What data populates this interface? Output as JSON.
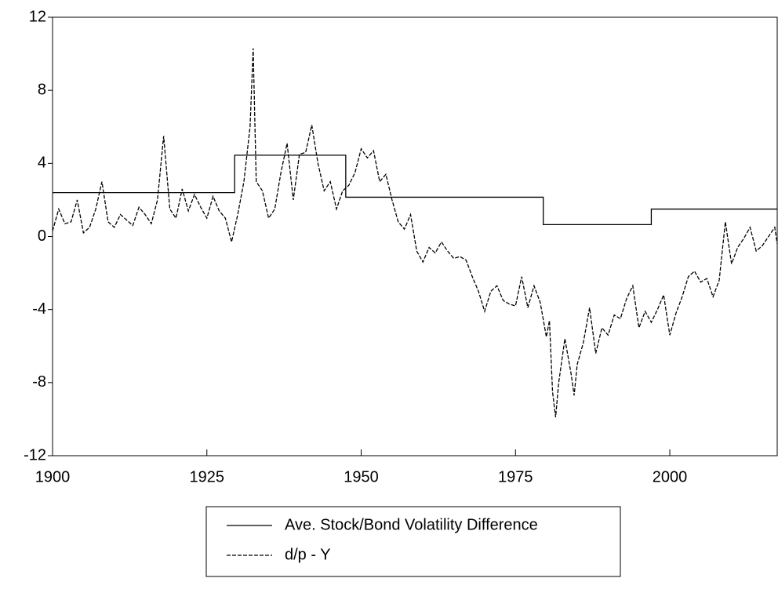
{
  "chart_data": {
    "type": "line",
    "xlim": [
      1900,
      2017.4
    ],
    "xticks": [
      1900,
      1925,
      1950,
      1975,
      2000
    ],
    "ylim": [
      -12,
      12
    ],
    "yticks": [
      -12,
      -8,
      -4,
      0,
      4,
      8,
      12
    ],
    "legend": "bottom",
    "series": [
      {
        "name": "Ave. Stock/Bond Volatility Difference",
        "color": "#000000",
        "dash": "solid",
        "x": [
          1900,
          1929.5,
          1929.5,
          1947.5,
          1947.5,
          1979.5,
          1979.5,
          1997,
          1997,
          2017.4
        ],
        "values": [
          2.4,
          2.4,
          4.45,
          4.45,
          2.15,
          2.15,
          0.65,
          0.65,
          1.5,
          1.5
        ]
      },
      {
        "name": "d/p - Y",
        "color": "#000000",
        "dash": "dashed",
        "x": [
          1900,
          1901,
          1902,
          1903,
          1904,
          1905,
          1906,
          1907,
          1908,
          1909,
          1910,
          1911,
          1912,
          1913,
          1914,
          1915,
          1916,
          1917,
          1918,
          1919,
          1920,
          1921,
          1922,
          1923,
          1924,
          1925,
          1926,
          1927,
          1928,
          1929,
          1930,
          1931,
          1932,
          1932.5,
          1933,
          1934,
          1935,
          1936,
          1937,
          1938,
          1939,
          1940,
          1941,
          1942,
          1943,
          1944,
          1945,
          1946,
          1947,
          1948,
          1949,
          1950,
          1951,
          1952,
          1953,
          1954,
          1955,
          1956,
          1957,
          1958,
          1959,
          1960,
          1961,
          1962,
          1963,
          1964,
          1965,
          1966,
          1967,
          1968,
          1969,
          1970,
          1971,
          1972,
          1973,
          1974,
          1975,
          1976,
          1977,
          1978,
          1979,
          1980,
          1980.5,
          1981,
          1981.5,
          1982,
          1983,
          1984,
          1984.5,
          1985,
          1986,
          1987,
          1988,
          1989,
          1990,
          1991,
          1992,
          1993,
          1994,
          1995,
          1996,
          1997,
          1998,
          1999,
          2000,
          2001,
          2002,
          2003,
          2004,
          2005,
          2006,
          2007,
          2008,
          2009,
          2010,
          2011,
          2012,
          2013,
          2014,
          2015,
          2016,
          2017,
          2017.4
        ],
        "values": [
          0.3,
          1.5,
          0.7,
          0.8,
          2.0,
          0.2,
          0.5,
          1.5,
          3.0,
          0.8,
          0.5,
          1.2,
          0.9,
          0.6,
          1.6,
          1.2,
          0.7,
          2.0,
          5.5,
          1.5,
          1.0,
          2.6,
          1.4,
          2.3,
          1.6,
          1.0,
          2.2,
          1.4,
          1.0,
          -0.3,
          1.2,
          3.0,
          6.0,
          10.3,
          3.0,
          2.5,
          1.0,
          1.5,
          3.5,
          5.1,
          2.0,
          4.5,
          4.6,
          6.1,
          4.0,
          2.5,
          3.0,
          1.5,
          2.5,
          2.8,
          3.5,
          4.8,
          4.3,
          4.7,
          3.0,
          3.4,
          2.0,
          0.8,
          0.4,
          1.2,
          -0.8,
          -1.4,
          -0.6,
          -0.9,
          -0.3,
          -0.8,
          -1.2,
          -1.1,
          -1.3,
          -2.2,
          -3.0,
          -4.1,
          -3.0,
          -2.7,
          -3.5,
          -3.7,
          -3.8,
          -2.2,
          -3.9,
          -2.7,
          -3.6,
          -5.5,
          -4.6,
          -8.5,
          -9.9,
          -8.0,
          -5.6,
          -7.5,
          -8.7,
          -7.0,
          -5.8,
          -3.9,
          -6.4,
          -5.0,
          -5.4,
          -4.3,
          -4.5,
          -3.4,
          -2.7,
          -5.0,
          -4.1,
          -4.7,
          -4.0,
          -3.2,
          -5.4,
          -4.2,
          -3.3,
          -2.2,
          -1.9,
          -2.5,
          -2.3,
          -3.3,
          -2.4,
          0.8,
          -1.5,
          -0.6,
          -0.1,
          0.5,
          -0.8,
          -0.5,
          0.0,
          0.5,
          -0.4
        ]
      }
    ]
  }
}
